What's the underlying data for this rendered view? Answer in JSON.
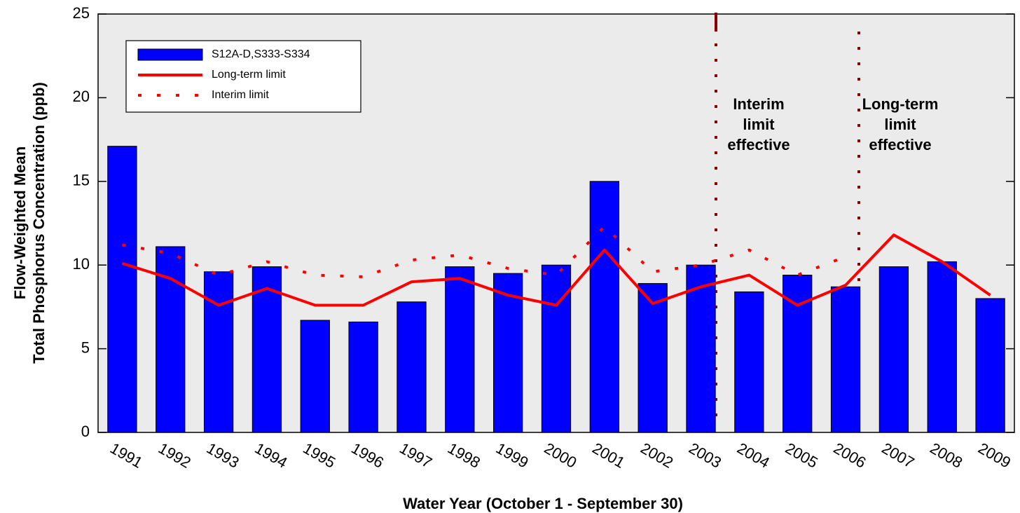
{
  "chart_data": {
    "type": "bar",
    "xlabel": "Water Year (October 1 - September 30)",
    "ylabel": [
      "Flow-Weighted Mean",
      "Total Phosphorus Concentration (ppb)"
    ],
    "categories": [
      "1991",
      "1992",
      "1993",
      "1994",
      "1995",
      "1996",
      "1997",
      "1998",
      "1999",
      "2000",
      "2001",
      "2002",
      "2003",
      "2004",
      "2005",
      "2006",
      "2007",
      "2008",
      "2009"
    ],
    "series": [
      {
        "name": "S12A-D,S333-S334",
        "type": "bar",
        "color": "#0000ff",
        "values": [
          17.1,
          11.1,
          9.6,
          9.9,
          6.7,
          6.6,
          7.8,
          9.9,
          9.5,
          10.0,
          15.0,
          8.9,
          10.0,
          8.4,
          9.4,
          8.7,
          9.9,
          10.2,
          8.0
        ]
      },
      {
        "name": "Long-term limit",
        "type": "line",
        "color": "#ff0000",
        "values": [
          10.1,
          9.2,
          7.6,
          8.6,
          7.6,
          7.6,
          9.0,
          9.2,
          8.2,
          7.6,
          10.9,
          7.7,
          8.7,
          9.4,
          7.6,
          8.8,
          11.8,
          10.2,
          8.2
        ]
      },
      {
        "name": "Interim limit",
        "type": "dotted",
        "color": "#ff0000",
        "values": [
          11.2,
          10.7,
          9.4,
          10.2,
          9.4,
          9.3,
          10.3,
          10.6,
          9.8,
          9.4,
          12.3,
          9.6,
          10.0,
          10.9,
          9.4,
          10.5,
          null,
          null,
          null
        ]
      }
    ],
    "annotations": [
      {
        "lines": [
          "Interim",
          "limit",
          "effective"
        ]
      },
      {
        "lines": [
          "Long-term",
          "limit",
          "effective"
        ]
      }
    ],
    "ylim": [
      0,
      25
    ],
    "yticks": [
      0,
      5,
      10,
      15,
      20,
      25
    ]
  }
}
